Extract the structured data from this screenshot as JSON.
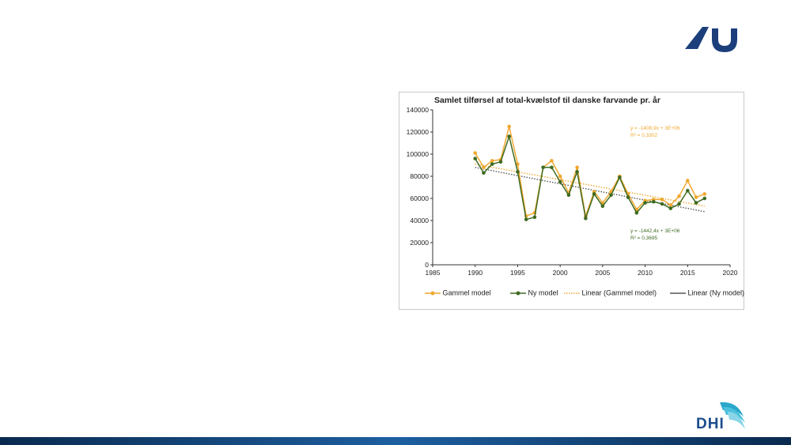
{
  "slide": {
    "logos": [
      {
        "name": "aarhus-university-logo",
        "color": "#1c3f7c"
      },
      {
        "name": "dhi-logo",
        "text": "DHI",
        "color": "#1c4d8c"
      }
    ],
    "bottom_bar_color": "#0d3a6b"
  },
  "chart_data": {
    "type": "line",
    "title": "Samlet tilførsel af total-kvælstof til danske farvande pr. år",
    "xlim": [
      1985,
      2020
    ],
    "ylim": [
      0,
      140000
    ],
    "x_ticks": [
      1985,
      1990,
      1995,
      2000,
      2005,
      2010,
      2015,
      2020
    ],
    "y_ticks": [
      0,
      20000,
      40000,
      60000,
      80000,
      100000,
      120000,
      140000
    ],
    "x": [
      1990,
      1991,
      1992,
      1993,
      1994,
      1995,
      1996,
      1997,
      1998,
      1999,
      2000,
      2001,
      2002,
      2003,
      2004,
      2005,
      2006,
      2007,
      2008,
      2009,
      2010,
      2011,
      2012,
      2013,
      2014,
      2015,
      2016,
      2017
    ],
    "series": [
      {
        "name": "Gammel model",
        "color": "#f0a830",
        "values": [
          101000,
          88000,
          94000,
          95000,
          125000,
          91000,
          44000,
          47000,
          88000,
          94000,
          80000,
          65000,
          88000,
          44000,
          66000,
          56000,
          66000,
          80000,
          64000,
          50000,
          58000,
          59000,
          59000,
          54000,
          62000,
          76000,
          61000,
          64000
        ]
      },
      {
        "name": "Ny model",
        "color": "#3f6b22",
        "values": [
          96000,
          83000,
          91000,
          93000,
          116000,
          84000,
          41000,
          43000,
          88000,
          88000,
          75000,
          63000,
          84000,
          42000,
          64000,
          53000,
          63000,
          79000,
          61000,
          47000,
          56000,
          57000,
          55000,
          51000,
          55000,
          67000,
          56000,
          60000
        ]
      }
    ],
    "trendlines": [
      {
        "name": "Linear (Gammel model)",
        "color": "#f0a830",
        "style": "dotted",
        "start": [
          1990,
          91000
        ],
        "end": [
          2017,
          53000
        ]
      },
      {
        "name": "Linear (Ny model)",
        "color": "#555555",
        "style": "dotted",
        "start": [
          1990,
          88000
        ],
        "end": [
          2017,
          48000
        ]
      }
    ],
    "annotations": [
      {
        "text": "y = -1408,9x + 3E+06",
        "color": "#f0a830"
      },
      {
        "text": "R² = 0,3302",
        "color": "#f0a830"
      },
      {
        "text": "y = -1442,4x + 3E+06",
        "color": "#3f6b22"
      },
      {
        "text": "R² = 0,3695",
        "color": "#3f6b22"
      }
    ],
    "legend": {
      "placement": "bottom",
      "entries": [
        "Gammel model",
        "Ny model",
        "Linear (Gammel model)",
        "Linear (Ny model)"
      ]
    },
    "grid": false
  }
}
